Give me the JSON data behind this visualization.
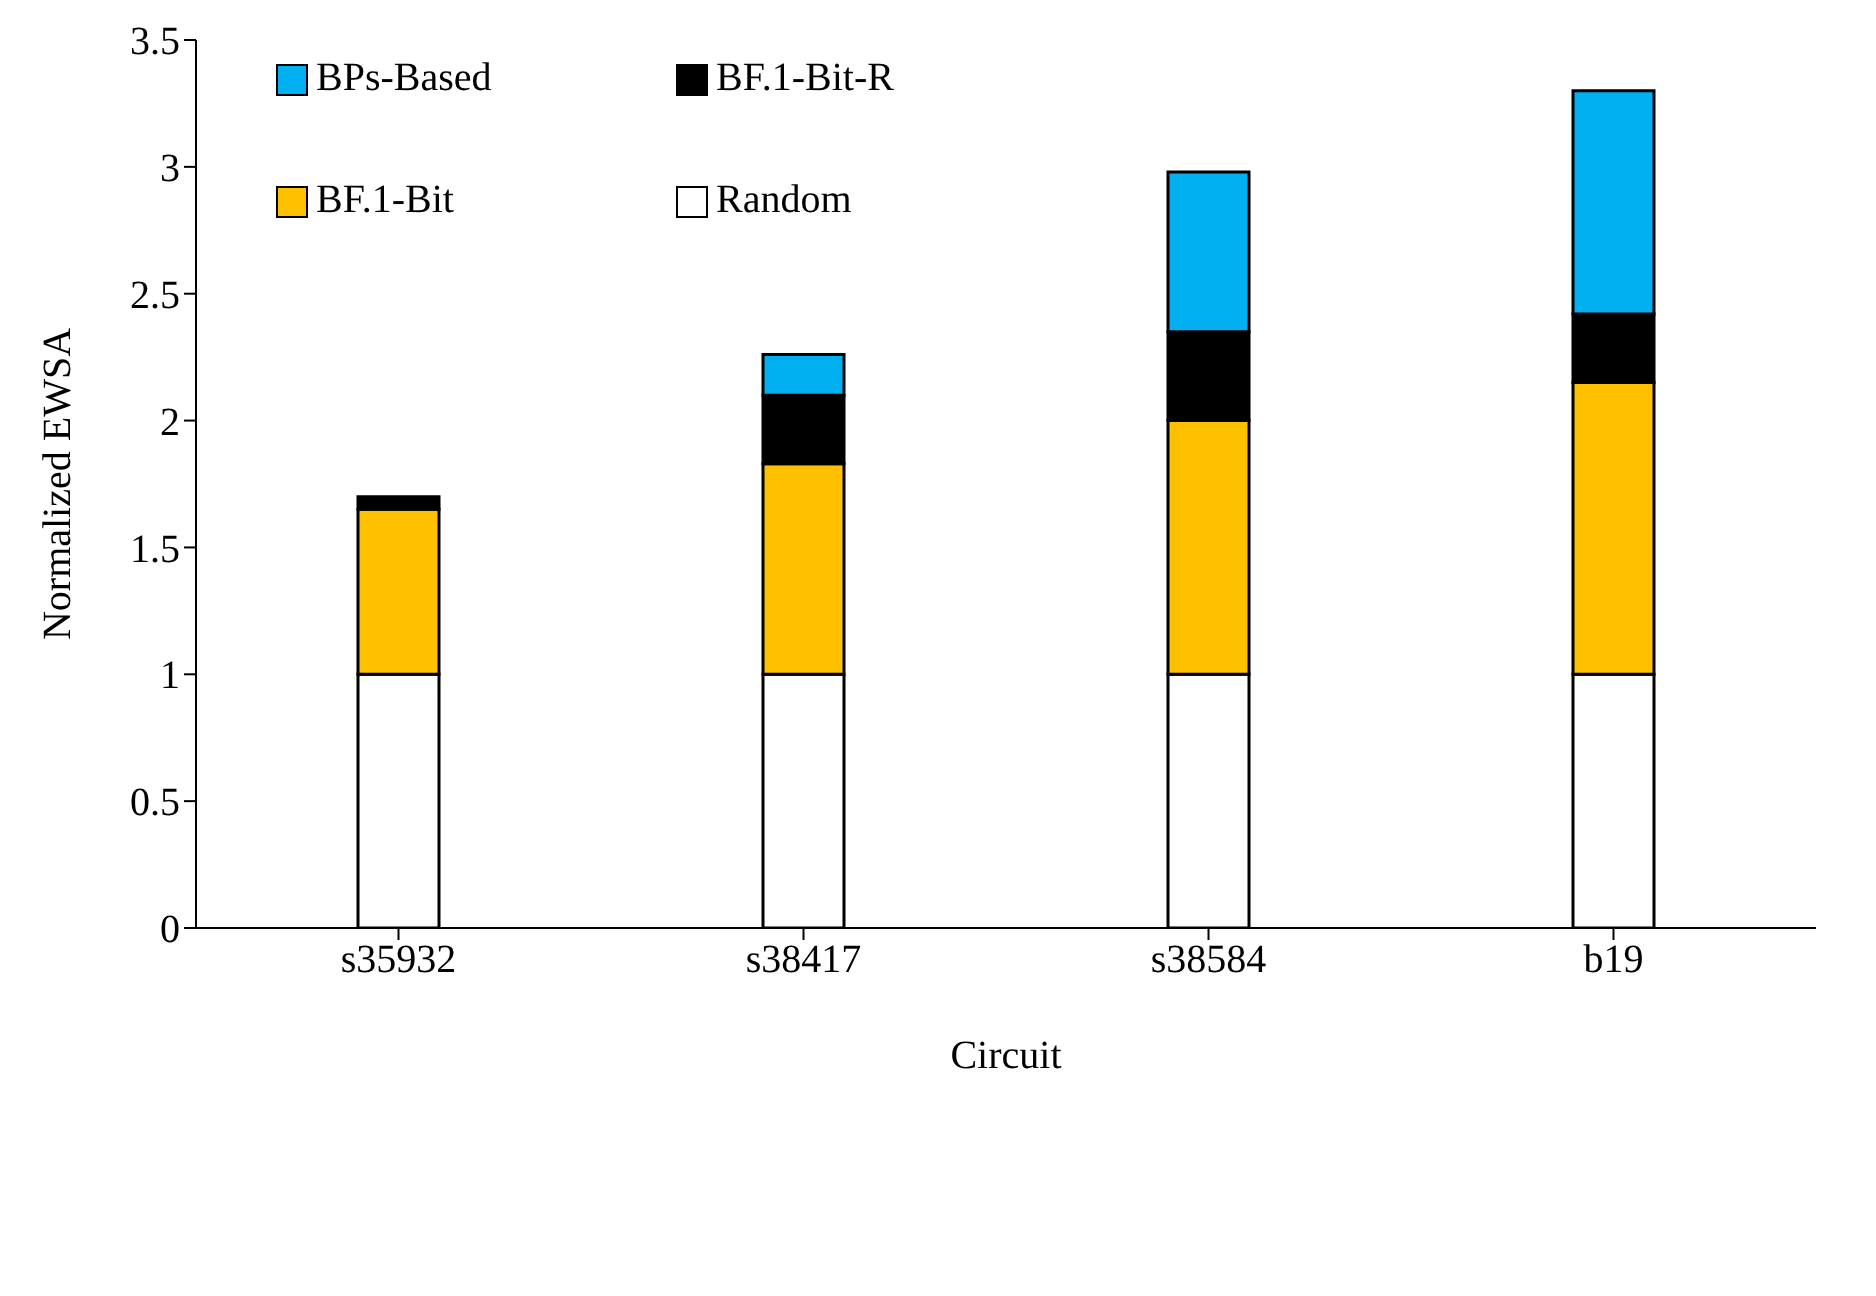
{
  "chart_data": {
    "type": "bar",
    "stacked": true,
    "xlabel": "Circuit",
    "ylabel": "Normalized EWSA",
    "categories": [
      "s35932",
      "s38417",
      "s38584",
      "b19"
    ],
    "series": [
      {
        "name": "Random",
        "color": "#ffffff",
        "values": [
          1,
          1,
          1,
          1
        ]
      },
      {
        "name": "BF.1-Bit",
        "color": "#ffc000",
        "values": [
          0.65,
          0.83,
          1.0,
          1.15
        ]
      },
      {
        "name": "BF.1-Bit-R",
        "color": "#000000",
        "values": [
          0.05,
          0.27,
          0.35,
          0.27
        ]
      },
      {
        "name": "BPs-Based",
        "color": "#00b0f0",
        "values": [
          0,
          0.16,
          0.63,
          0.88
        ]
      }
    ],
    "ylim": [
      0,
      3.5
    ],
    "yticks": [
      0,
      0.5,
      1,
      1.5,
      2,
      2.5,
      3,
      3.5
    ],
    "grid": false,
    "legend": "top left"
  }
}
